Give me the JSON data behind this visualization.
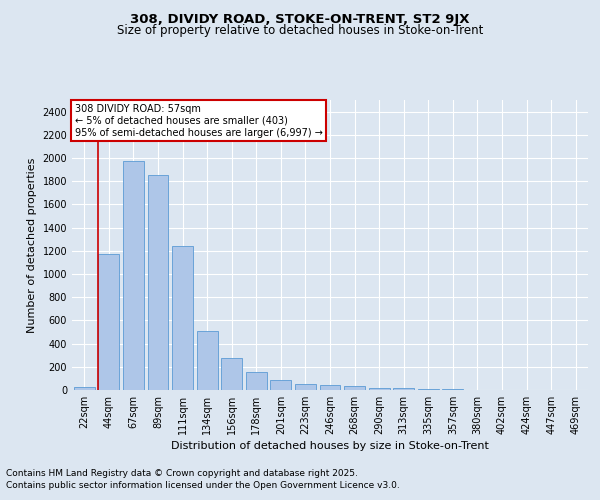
{
  "title": "308, DIVIDY ROAD, STOKE-ON-TRENT, ST2 9JX",
  "subtitle": "Size of property relative to detached houses in Stoke-on-Trent",
  "xlabel": "Distribution of detached houses by size in Stoke-on-Trent",
  "ylabel": "Number of detached properties",
  "categories": [
    "22sqm",
    "44sqm",
    "67sqm",
    "89sqm",
    "111sqm",
    "134sqm",
    "156sqm",
    "178sqm",
    "201sqm",
    "223sqm",
    "246sqm",
    "268sqm",
    "290sqm",
    "313sqm",
    "335sqm",
    "357sqm",
    "380sqm",
    "402sqm",
    "424sqm",
    "447sqm",
    "469sqm"
  ],
  "values": [
    25,
    1175,
    1975,
    1850,
    1240,
    510,
    275,
    155,
    90,
    50,
    45,
    35,
    20,
    15,
    5,
    5,
    2,
    2,
    2,
    2,
    2
  ],
  "bar_color": "#aec6e8",
  "bar_edge_color": "#5b9bd5",
  "vline_color": "#cc0000",
  "vline_pos": 0.575,
  "annotation_text": "308 DIVIDY ROAD: 57sqm\n← 5% of detached houses are smaller (403)\n95% of semi-detached houses are larger (6,997) →",
  "annotation_box_color": "#ffffff",
  "annotation_box_edge": "#cc0000",
  "bg_color": "#dce6f1",
  "plot_bg_color": "#dce6f1",
  "grid_color": "#ffffff",
  "ylim": [
    0,
    2500
  ],
  "yticks": [
    0,
    200,
    400,
    600,
    800,
    1000,
    1200,
    1400,
    1600,
    1800,
    2000,
    2200,
    2400
  ],
  "footer_line1": "Contains HM Land Registry data © Crown copyright and database right 2025.",
  "footer_line2": "Contains public sector information licensed under the Open Government Licence v3.0.",
  "title_fontsize": 9.5,
  "subtitle_fontsize": 8.5,
  "xlabel_fontsize": 8,
  "ylabel_fontsize": 8,
  "tick_fontsize": 7,
  "annotation_fontsize": 7,
  "footer_fontsize": 6.5
}
